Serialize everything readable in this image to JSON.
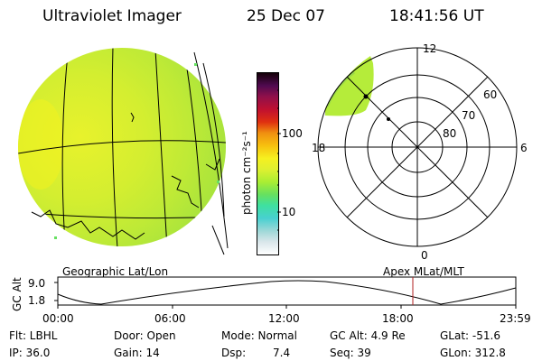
{
  "header": {
    "title": "Ultraviolet Imager",
    "date": "25 Dec 07",
    "time": "18:41:56 UT"
  },
  "colorbar": {
    "unit_label": "photon cm⁻²s⁻¹",
    "tick_100": "100",
    "tick_10": "10",
    "colors": [
      "#ffffff",
      "#d9e6ea",
      "#9ed8d8",
      "#48d0d0",
      "#3ee0a0",
      "#66e060",
      "#aaee33",
      "#dff030",
      "#f6f020",
      "#f7c10f",
      "#f08f10",
      "#e03010",
      "#c01030",
      "#90104a",
      "#500a50",
      "#140008"
    ]
  },
  "polar": {
    "top_label": "12",
    "left_label": "18",
    "right_label": "6",
    "bottom_label": "0",
    "ring_labels": [
      "60",
      "70",
      "80"
    ]
  },
  "panel_labels": {
    "geographic": "Geographic Lat/Lon",
    "apex": "Apex MLat/MLT"
  },
  "altitude_plot": {
    "axis_label": "GC Alt",
    "y_top": "9.0",
    "y_bottom": "1.8",
    "x_ticks": [
      "00:00",
      "06:00",
      "12:00",
      "18:00",
      "23:59"
    ],
    "marker_color": "#b22222"
  },
  "footer": {
    "flt": "Flt: LBHL",
    "ip": "IP: 36.0",
    "door": "Door: Open",
    "gain": "Gain: 14",
    "mode": "Mode: Normal",
    "dsp_label": "Dsp:",
    "dsp_value": "7.4",
    "gc_alt": "GC Alt: 4.9 Re",
    "seq": "Seq: 39",
    "glat": "GLat: -51.6",
    "glon": "GLon: 312.8"
  }
}
